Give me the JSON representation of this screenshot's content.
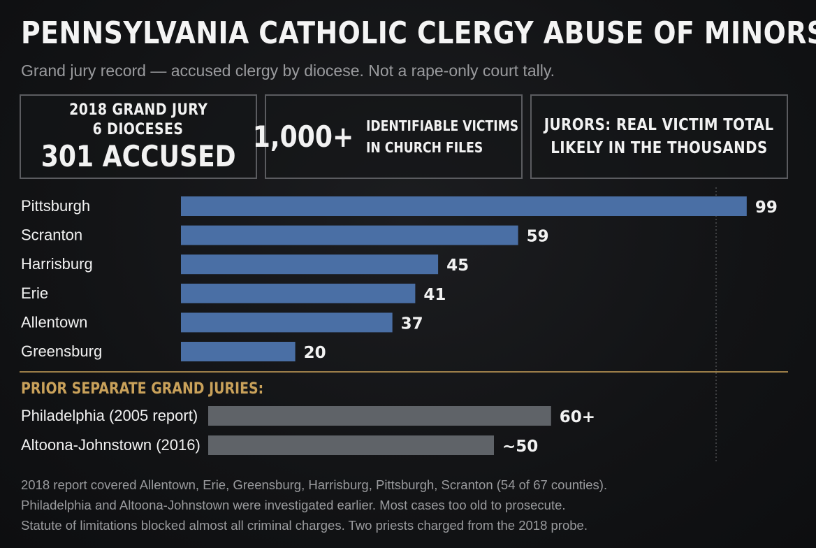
{
  "title": "PENNSYLVANIA CATHOLIC CLERGY ABUSE OF MINORS",
  "subtitle": "Grand jury record — accused clergy by diocese. Not a rape-only court tally.",
  "stats": {
    "box1": {
      "line1": "2018 GRAND JURY",
      "line2": "6 DIOCESES",
      "line3": "301 ACCUSED"
    },
    "box2": {
      "big": "1,000+",
      "line1": "IDENTIFIABLE VICTIMS",
      "line2": "IN CHURCH FILES"
    },
    "box3": {
      "line1": "JURORS: REAL VICTIM TOTAL",
      "line2": "LIKELY IN THE THOUSANDS"
    }
  },
  "colors": {
    "bar_2018": "#4a6fa5",
    "bar_prior": "#5f6368",
    "accent": "#c9a15a",
    "ref_line": "#6a6b6e"
  },
  "chart_data": [
    {
      "type": "bar",
      "orientation": "horizontal",
      "categories": [
        "Pittsburgh",
        "Scranton",
        "Harrisburg",
        "Erie",
        "Allentown",
        "Greensburg"
      ],
      "values": [
        99,
        59,
        45,
        41,
        37,
        20
      ],
      "value_labels": [
        "99",
        "59",
        "45",
        "41",
        "37",
        "20"
      ],
      "xlim": [
        0,
        100
      ],
      "grid": false
    },
    {
      "type": "bar",
      "orientation": "horizontal",
      "heading": "PRIOR SEPARATE GRAND JURIES:",
      "categories": [
        "Philadelphia (2005 report)",
        "Altoona-Johnstown (2016)"
      ],
      "values": [
        60,
        50
      ],
      "value_labels": [
        "60+",
        "~50"
      ],
      "xlim": [
        0,
        100
      ],
      "grid": false
    }
  ],
  "notes": [
    "2018 report covered Allentown, Erie, Greensburg, Harrisburg, Pittsburgh, Scranton (54 of 67 counties).",
    "Philadelphia and Altoona-Johnstown were investigated earlier. Most cases too old to prosecute.",
    "Statute of limitations blocked almost all criminal charges. Two priests charged from the 2018 probe."
  ]
}
